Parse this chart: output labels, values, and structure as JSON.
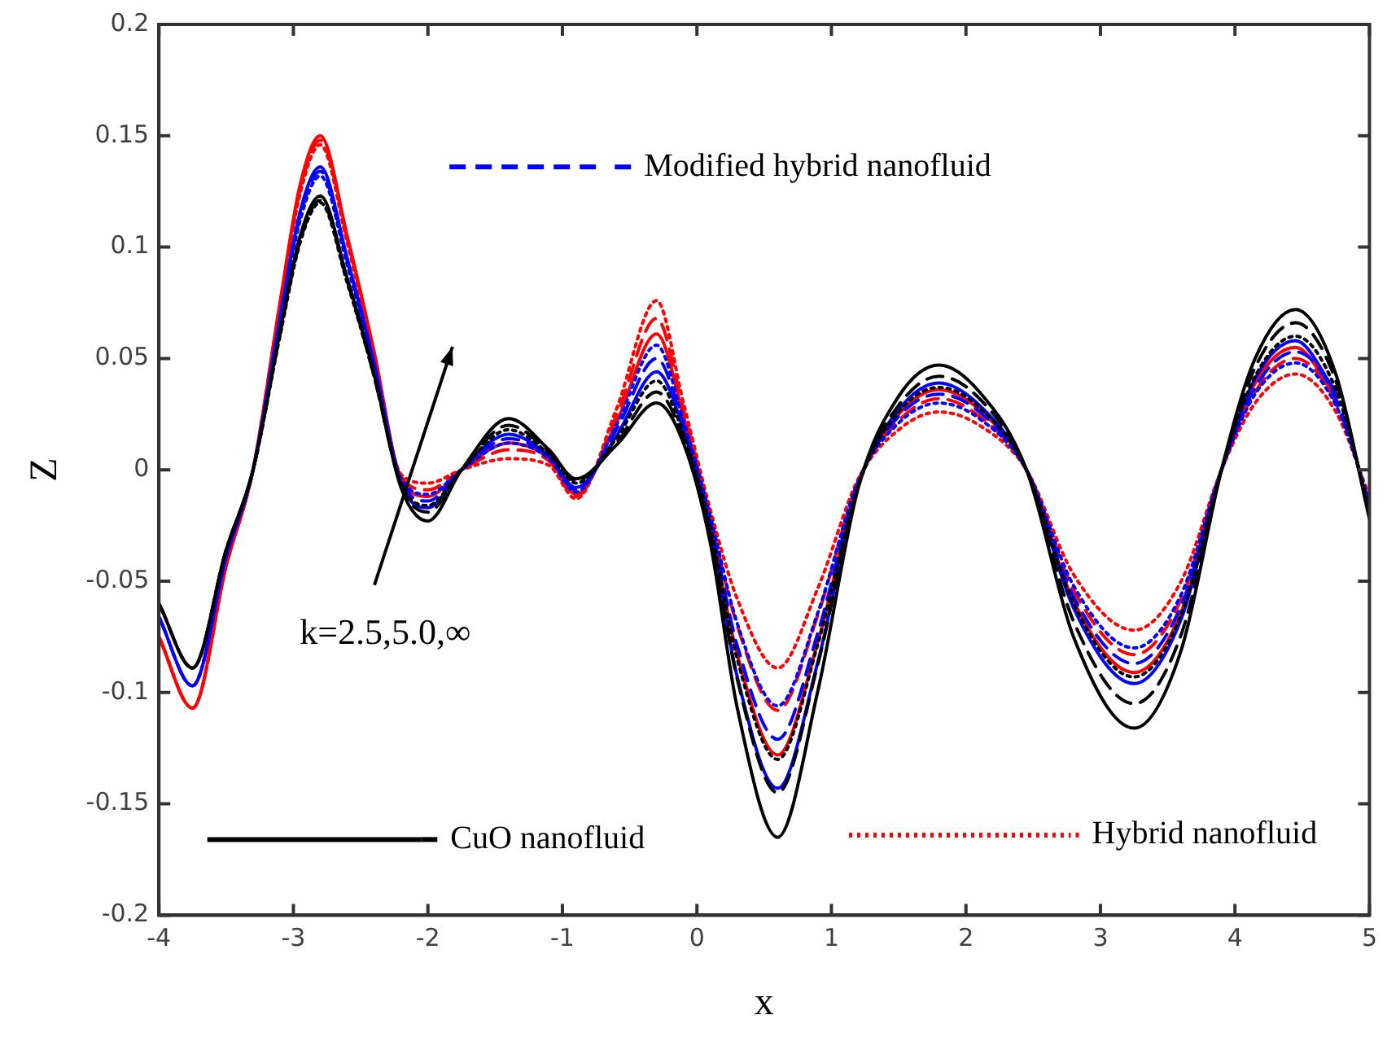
{
  "chart_data": {
    "type": "line",
    "xlabel": "x",
    "ylabel": "Z",
    "xlim": [
      -4,
      5
    ],
    "ylim": [
      -0.2,
      0.2
    ],
    "xticks": [
      -4,
      -3,
      -2,
      -1,
      0,
      1,
      2,
      3,
      4,
      5
    ],
    "yticks": [
      -0.2,
      -0.15,
      -0.1,
      -0.05,
      0,
      0.05,
      0.1,
      0.15,
      0.2
    ],
    "grid": false,
    "legend": "bottom right",
    "marker": "none",
    "x": [
      -4,
      -3.75,
      -3.5,
      -3.3,
      -3.1,
      -2.95,
      -2.8,
      -2.6,
      -2.4,
      -2.2,
      -2.0,
      -1.75,
      -1.4,
      -1.1,
      -0.9,
      -0.6,
      -0.3,
      -0.1,
      0.1,
      0.3,
      0.6,
      0.9,
      1.2,
      1.5,
      1.8,
      2.1,
      2.45,
      2.8,
      3.25,
      3.6,
      3.9,
      4.15,
      4.45,
      4.75,
      5
    ],
    "annotations": [
      "k=2.5,5.0,∞"
    ],
    "series": [
      {
        "name": "CuO nanofluid",
        "color": "#000000",
        "line_style": "solid",
        "values": [
          -0.06,
          -0.089,
          -0.036,
          0,
          0.062,
          0.105,
          0.123,
          0.086,
          0.043,
          -0.008,
          -0.023,
          0,
          0.023,
          0.009,
          -0.004,
          0.011,
          0.03,
          0.012,
          -0.033,
          -0.107,
          -0.165,
          -0.099,
          -0.008,
          0.033,
          0.047,
          0.035,
          0,
          -0.075,
          -0.116,
          -0.081,
          0,
          0.05,
          0.072,
          0.043,
          -0.022
        ]
      },
      {
        "color": "#000000",
        "line_style": "dashed",
        "values": [
          -0.06,
          -0.089,
          -0.036,
          0,
          0.061,
          0.103,
          0.121,
          0.085,
          0.042,
          -0.007,
          -0.019,
          0,
          0.02,
          0.008,
          -0.005,
          0.012,
          0.035,
          0.014,
          -0.029,
          -0.094,
          -0.145,
          -0.087,
          -0.007,
          0.029,
          0.042,
          0.032,
          0,
          -0.068,
          -0.105,
          -0.074,
          0,
          0.046,
          0.066,
          0.04,
          -0.02
        ]
      },
      {
        "color": "#000000",
        "line_style": "dotted",
        "values": [
          -0.06,
          -0.089,
          -0.036,
          0,
          0.06,
          0.102,
          0.12,
          0.084,
          0.042,
          -0.006,
          -0.016,
          0,
          0.018,
          0.007,
          -0.006,
          0.014,
          0.04,
          0.016,
          -0.026,
          -0.085,
          -0.13,
          -0.078,
          -0.007,
          0.026,
          0.037,
          0.028,
          0,
          -0.06,
          -0.093,
          -0.065,
          0,
          0.042,
          0.06,
          0.036,
          -0.018
        ]
      },
      {
        "color": "#0000ff",
        "line_style": "solid",
        "values": [
          -0.066,
          -0.097,
          -0.039,
          0,
          0.068,
          0.116,
          0.136,
          0.095,
          0.048,
          -0.006,
          -0.017,
          0,
          0.016,
          0.006,
          -0.008,
          0.015,
          0.044,
          0.018,
          -0.029,
          -0.093,
          -0.143,
          -0.086,
          -0.007,
          0.027,
          0.039,
          0.029,
          0,
          -0.062,
          -0.096,
          -0.067,
          0,
          0.041,
          0.058,
          0.035,
          null
        ]
      },
      {
        "name": "Modified hybrid nanofluid",
        "color": "#0000ff",
        "line_style": "dashed",
        "values": [
          -0.066,
          -0.097,
          -0.039,
          0,
          0.067,
          0.114,
          0.134,
          0.094,
          0.047,
          -0.005,
          -0.014,
          0,
          0.014,
          0.006,
          -0.009,
          0.018,
          0.05,
          0.02,
          -0.024,
          -0.079,
          -0.121,
          -0.073,
          -0.006,
          0.024,
          0.034,
          0.026,
          0,
          -0.057,
          -0.087,
          -0.061,
          0,
          0.037,
          0.053,
          0.032,
          -0.016
        ]
      },
      {
        "color": "#0000ff",
        "line_style": "dotted",
        "values": [
          -0.066,
          -0.097,
          -0.039,
          0,
          0.066,
          0.112,
          0.132,
          0.092,
          0.046,
          -0.004,
          -0.011,
          0,
          0.012,
          0.005,
          -0.01,
          0.02,
          0.056,
          0.022,
          -0.021,
          -0.069,
          -0.106,
          -0.064,
          -0.005,
          0.021,
          0.03,
          0.023,
          0,
          -0.052,
          -0.08,
          -0.056,
          0,
          0.034,
          0.048,
          0.029,
          -0.014
        ]
      },
      {
        "color": "#ff0000",
        "line_style": "solid",
        "values": [
          -0.075,
          -0.107,
          -0.043,
          0,
          0.075,
          0.128,
          0.15,
          0.105,
          0.053,
          -0.004,
          -0.012,
          0,
          0.012,
          0.005,
          -0.011,
          0.021,
          0.061,
          0.024,
          -0.026,
          -0.083,
          -0.128,
          -0.077,
          -0.006,
          0.025,
          0.036,
          0.027,
          0,
          -0.059,
          -0.091,
          -0.064,
          0,
          0.039,
          0.055,
          0.033,
          null
        ]
      },
      {
        "color": "#ff0000",
        "line_style": "dashed",
        "values": [
          -0.075,
          -0.107,
          -0.043,
          0,
          0.074,
          0.126,
          0.148,
          0.104,
          0.052,
          -0.003,
          -0.009,
          0,
          0.009,
          0.004,
          -0.012,
          0.024,
          0.068,
          0.027,
          -0.022,
          -0.07,
          -0.108,
          -0.065,
          -0.005,
          0.022,
          0.032,
          0.024,
          0,
          -0.054,
          -0.083,
          -0.058,
          0,
          0.035,
          0.05,
          0.03,
          -0.014
        ]
      },
      {
        "name": "Hybrid nanofluid",
        "color": "#ff0000",
        "line_style": "dotted",
        "values": [
          -0.075,
          -0.107,
          -0.043,
          0,
          0.073,
          0.124,
          0.146,
          0.102,
          0.051,
          -0.002,
          -0.006,
          0,
          0.005,
          0.002,
          -0.013,
          0.027,
          0.076,
          0.03,
          -0.018,
          -0.058,
          -0.089,
          -0.053,
          -0.004,
          0.018,
          0.026,
          0.02,
          0,
          -0.047,
          -0.072,
          -0.05,
          0,
          0.03,
          0.043,
          0.026,
          -0.012
        ]
      }
    ]
  }
}
